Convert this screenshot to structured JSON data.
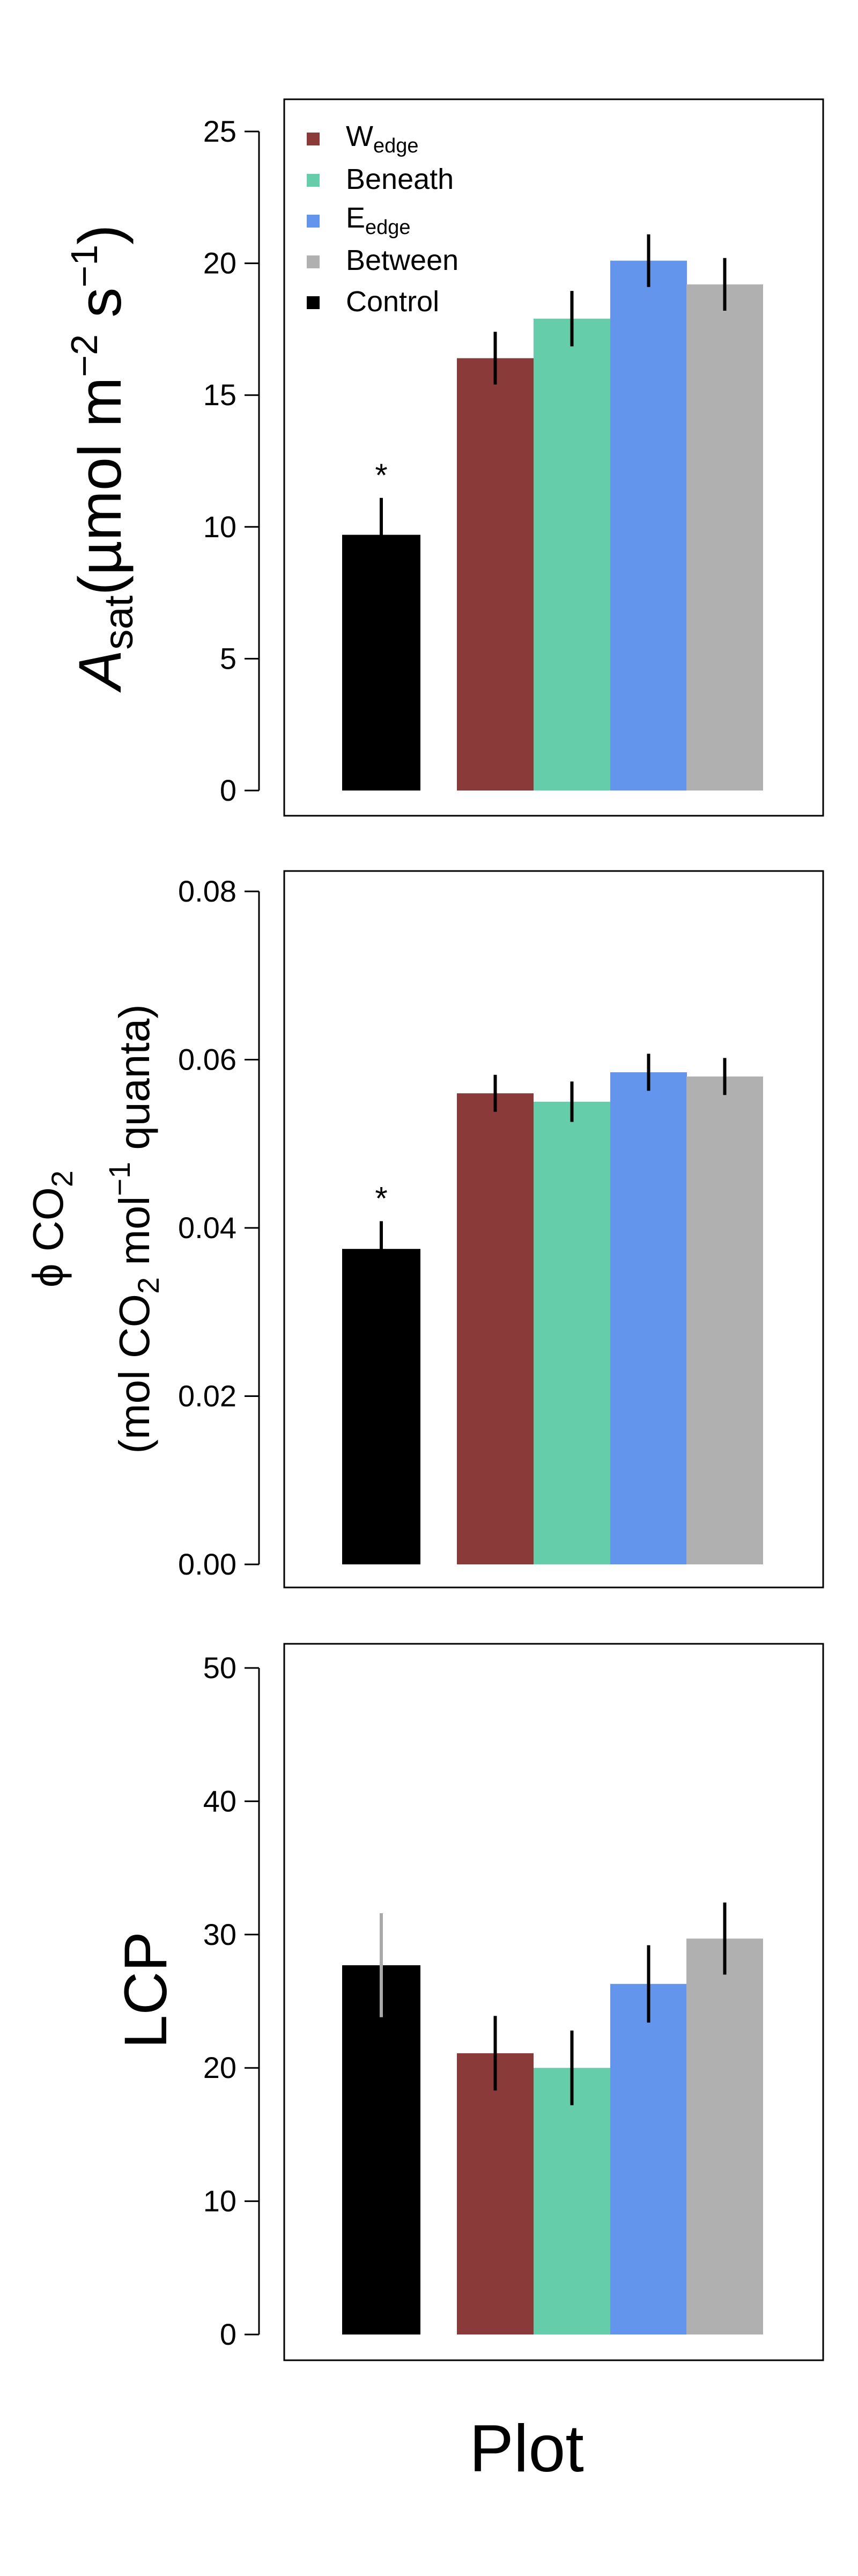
{
  "chart_data": [
    {
      "type": "bar",
      "ylabel_main": "A",
      "ylabel_sub": "sat",
      "ylabel_units": "(µmol m",
      "ylabel_sup1": "−2",
      "ylabel_s": " s",
      "ylabel_sup2": "−1",
      "ylabel_close": ")",
      "ylim": [
        0,
        25
      ],
      "yticks": [
        "0",
        "5",
        "10",
        "15",
        "20",
        "25"
      ],
      "categories": [
        "Control",
        "Wedge",
        "Beneath",
        "Eedge",
        "Between"
      ],
      "values": [
        9.7,
        16.4,
        17.9,
        20.1,
        19.2
      ],
      "errors": [
        1.4,
        1.0,
        1.05,
        1.0,
        1.0
      ],
      "annotations": [
        "*",
        "",
        "",
        "",
        ""
      ],
      "legend": {
        "position": "top-left",
        "entries": [
          {
            "label": "W",
            "sub": "edge",
            "color": "#8B3A3A"
          },
          {
            "label": "Beneath",
            "sub": "",
            "color": "#66CDAA"
          },
          {
            "label": "E",
            "sub": "edge",
            "color": "#6495ED"
          },
          {
            "label": "Between",
            "sub": "",
            "color": "#B0B0B0"
          },
          {
            "label": "Control",
            "sub": "",
            "color": "#000000"
          }
        ]
      }
    },
    {
      "type": "bar",
      "ylabel_line1": "ϕ CO",
      "ylabel_line1_sub": "2",
      "ylabel_line2": "(mol CO",
      "ylabel_line2_sub": "2",
      "ylabel_line2_mid": " mol",
      "ylabel_line2_sup": "−1",
      "ylabel_line2_end": " quanta)",
      "ylim": [
        0,
        0.08
      ],
      "yticks": [
        "0.00",
        "0.02",
        "0.04",
        "0.06",
        "0.08"
      ],
      "categories": [
        "Control",
        "Wedge",
        "Beneath",
        "Eedge",
        "Between"
      ],
      "values": [
        0.0375,
        0.056,
        0.055,
        0.0585,
        0.058
      ],
      "errors": [
        0.0033,
        0.0022,
        0.0024,
        0.0022,
        0.0022
      ],
      "annotations": [
        "*",
        "",
        "",
        "",
        ""
      ]
    },
    {
      "type": "bar",
      "ylabel": "LCP",
      "ylim": [
        0,
        50
      ],
      "yticks": [
        "0",
        "10",
        "20",
        "30",
        "40",
        "50"
      ],
      "categories": [
        "Control",
        "Wedge",
        "Beneath",
        "Eedge",
        "Between"
      ],
      "values": [
        27.7,
        21.1,
        20.0,
        26.3,
        29.7
      ],
      "errors": [
        3.9,
        2.8,
        2.8,
        2.9,
        2.7
      ],
      "annotations": [
        "",
        "",
        "",
        "",
        ""
      ]
    }
  ],
  "xlabel": "Plot",
  "colors": {
    "control": "#000000",
    "wedge": "#8B3A3A",
    "beneath": "#66CDAA",
    "eedge": "#6495ED",
    "between": "#B0B0B0",
    "error_dark": "#000000",
    "error_light": "#A9A9A9"
  }
}
